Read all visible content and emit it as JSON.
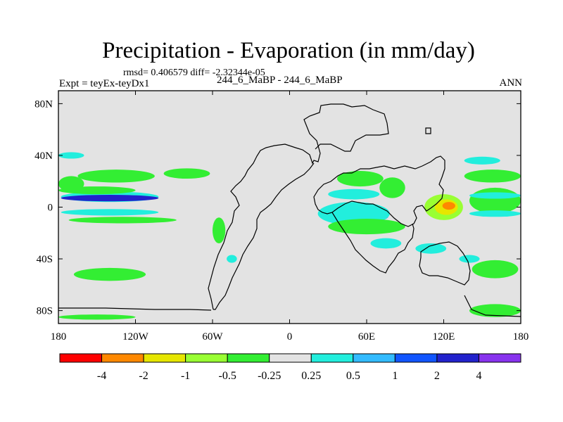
{
  "figure": {
    "title": "Precipitation - Evaporation (in mm/day)",
    "stats": "rmsd= 0.406579 diff= -2.32344e-05",
    "case": "244_6_MaBP - 244_6_MaBP",
    "expt": "Expt = teyEx-teyDx1",
    "season": "ANN"
  },
  "colors": {
    "map_background": "#e3e3e3",
    "coastline": "#000000",
    "colorbar_bins": [
      "#ff0000",
      "#ff8800",
      "#e6e600",
      "#99ff33",
      "#33ee33",
      "#e3e3e3",
      "#22eedd",
      "#33bbff",
      "#1155ff",
      "#2222cc",
      "#8833ee"
    ]
  },
  "chart_data": {
    "type": "heatmap",
    "map_projection": "cylindrical equidistant",
    "x_ticks": [
      {
        "value": -180,
        "label": "180"
      },
      {
        "value": -120,
        "label": "120W"
      },
      {
        "value": -60,
        "label": "60W"
      },
      {
        "value": 0,
        "label": "0"
      },
      {
        "value": 60,
        "label": "60E"
      },
      {
        "value": 120,
        "label": "120E"
      },
      {
        "value": 180,
        "label": "180"
      }
    ],
    "y_ticks": [
      {
        "value": 80,
        "label": "80N"
      },
      {
        "value": 40,
        "label": "40N"
      },
      {
        "value": 0,
        "label": "0"
      },
      {
        "value": -40,
        "label": "40S"
      },
      {
        "value": -80,
        "label": "80S"
      }
    ],
    "xlim": [
      -180,
      180
    ],
    "ylim": [
      -90,
      90
    ],
    "colorbar": {
      "levels": [
        -4,
        -2,
        -1,
        -0.5,
        -0.25,
        0.25,
        0.5,
        1,
        2,
        4
      ],
      "labels": [
        "-4",
        "-2",
        "-1",
        "-0.5",
        "-0.25",
        "0.25",
        "0.5",
        "1",
        "2",
        "4"
      ]
    },
    "regions": [
      {
        "level": 0.4,
        "lon": -140,
        "lat": 8,
        "rx": 38,
        "ry": 4
      },
      {
        "level": 3.0,
        "lon": -140,
        "lat": 7,
        "rx": 38,
        "ry": 2.5
      },
      {
        "level": -0.4,
        "lon": -150,
        "lat": 13,
        "rx": 30,
        "ry": 3
      },
      {
        "level": 0.4,
        "lon": -140,
        "lat": -4,
        "rx": 38,
        "ry": 2.5
      },
      {
        "level": -0.4,
        "lon": -130,
        "lat": -10,
        "rx": 42,
        "ry": 2.5
      },
      {
        "level": -0.4,
        "lon": -135,
        "lat": 24,
        "rx": 30,
        "ry": 5
      },
      {
        "level": -0.4,
        "lon": -80,
        "lat": 26,
        "rx": 18,
        "ry": 4
      },
      {
        "level": 0.4,
        "lon": -170,
        "lat": 40,
        "rx": 10,
        "ry": 2.5
      },
      {
        "level": -0.4,
        "lon": -170,
        "lat": 18,
        "rx": 10,
        "ry": 6
      },
      {
        "level": -0.4,
        "lon": -55,
        "lat": -18,
        "rx": 5,
        "ry": 10
      },
      {
        "level": -0.4,
        "lon": -140,
        "lat": -52,
        "rx": 28,
        "ry": 5
      },
      {
        "level": -0.4,
        "lon": -150,
        "lat": -85,
        "rx": 30,
        "ry": 2
      },
      {
        "level": 0.4,
        "lon": -45,
        "lat": -40,
        "rx": 4,
        "ry": 3
      },
      {
        "level": 0.4,
        "lon": 50,
        "lat": 10,
        "rx": 20,
        "ry": 4
      },
      {
        "level": 1.5,
        "lon": 55,
        "lat": -7,
        "rx": 22,
        "ry": 5
      },
      {
        "level": 0.4,
        "lon": 50,
        "lat": -5,
        "rx": 28,
        "ry": 9
      },
      {
        "level": -0.4,
        "lon": 60,
        "lat": -15,
        "rx": 30,
        "ry": 6
      },
      {
        "level": 0.4,
        "lon": 75,
        "lat": -28,
        "rx": 12,
        "ry": 4
      },
      {
        "level": -0.4,
        "lon": 55,
        "lat": 22,
        "rx": 18,
        "ry": 6
      },
      {
        "level": -0.4,
        "lon": 80,
        "lat": 15,
        "rx": 10,
        "ry": 8
      },
      {
        "level": -0.75,
        "lon": 120,
        "lat": 0,
        "rx": 15,
        "ry": 10
      },
      {
        "level": -1.5,
        "lon": 122,
        "lat": 0,
        "rx": 9,
        "ry": 6
      },
      {
        "level": -3.0,
        "lon": 124,
        "lat": 1,
        "rx": 5,
        "ry": 3
      },
      {
        "level": 0.4,
        "lon": 110,
        "lat": -32,
        "rx": 12,
        "ry": 4
      },
      {
        "level": -0.4,
        "lon": 160,
        "lat": 5,
        "rx": 20,
        "ry": 10
      },
      {
        "level": 0.4,
        "lon": 160,
        "lat": 9,
        "rx": 20,
        "ry": 2.5
      },
      {
        "level": 0.4,
        "lon": 160,
        "lat": -5,
        "rx": 20,
        "ry": 2.5
      },
      {
        "level": -0.4,
        "lon": 158,
        "lat": 24,
        "rx": 22,
        "ry": 5
      },
      {
        "level": 0.4,
        "lon": 150,
        "lat": 36,
        "rx": 14,
        "ry": 3
      },
      {
        "level": -0.4,
        "lon": 160,
        "lat": -48,
        "rx": 18,
        "ry": 7
      },
      {
        "level": -0.4,
        "lon": 160,
        "lat": -80,
        "rx": 20,
        "ry": 5
      },
      {
        "level": 0.4,
        "lon": 140,
        "lat": -40,
        "rx": 8,
        "ry": 3
      }
    ]
  }
}
